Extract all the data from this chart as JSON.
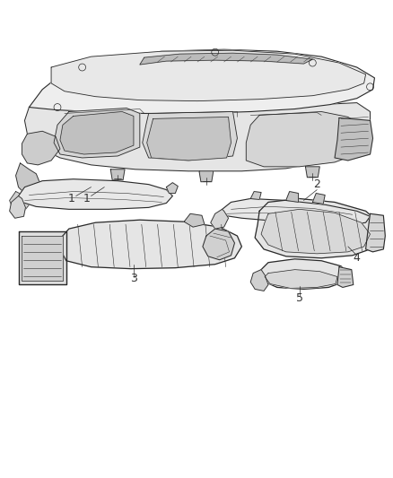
{
  "background_color": "#ffffff",
  "line_color": "#2a2a2a",
  "fill_color": "#f5f5f5",
  "shade_color": "#e0e0e0",
  "dark_shade": "#c8c8c8",
  "fig_width": 4.39,
  "fig_height": 5.33,
  "dpi": 100,
  "label_fontsize": 9,
  "label_color": "#333333",
  "lw_main": 0.7,
  "lw_detail": 0.4
}
